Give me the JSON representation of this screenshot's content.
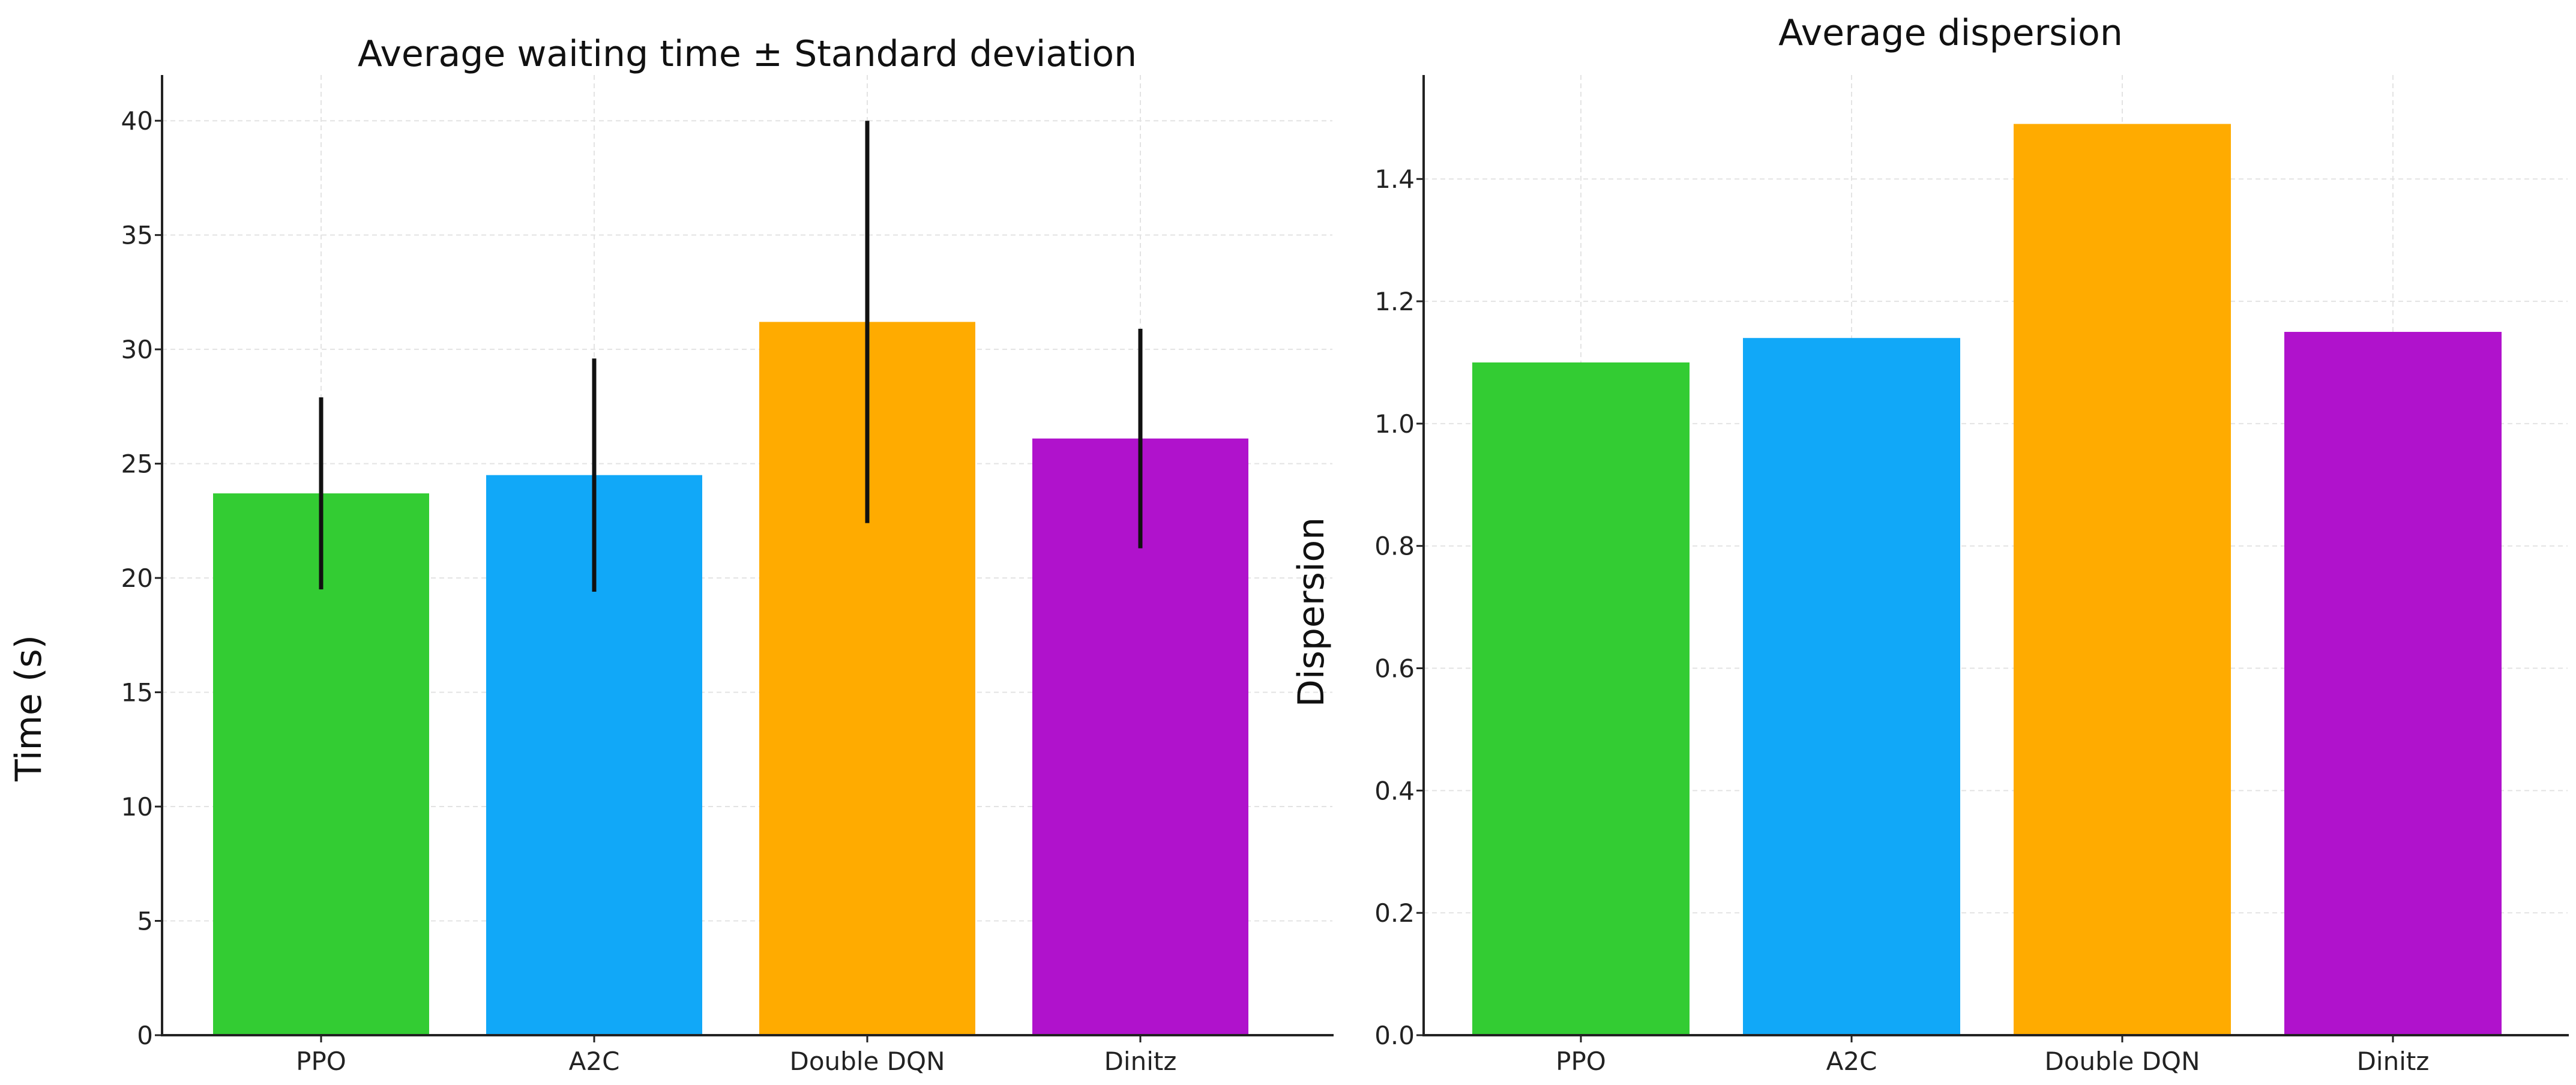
{
  "chart_data": [
    {
      "type": "bar",
      "title": "Average waiting time ± Standard deviation",
      "xlabel": "",
      "ylabel": "Time (s)",
      "categories": [
        "PPO",
        "A2C",
        "Double DQN",
        "Dinitz"
      ],
      "values": [
        23.7,
        24.5,
        31.2,
        26.1
      ],
      "errors": [
        4.2,
        5.1,
        8.8,
        4.8
      ],
      "colors": [
        "#33cc33",
        "#11a8f8",
        "#ffab00",
        "#b012cc"
      ],
      "ylim": [
        0,
        42
      ],
      "yticks": [
        0,
        5,
        10,
        15,
        20,
        25,
        30,
        35,
        40
      ],
      "ytick_labels": [
        "0",
        "5",
        "10",
        "15",
        "20",
        "25",
        "30",
        "35",
        "40"
      ],
      "grid": true
    },
    {
      "type": "bar",
      "title": "Average dispersion",
      "xlabel": "",
      "ylabel": "Dispersion",
      "categories": [
        "PPO",
        "A2C",
        "Double DQN",
        "Dinitz"
      ],
      "values": [
        1.1,
        1.14,
        1.49,
        1.15
      ],
      "colors": [
        "#33cc33",
        "#11a8f8",
        "#ffab00",
        "#b012cc"
      ],
      "ylim": [
        0,
        1.57
      ],
      "yticks": [
        0,
        0.2,
        0.4,
        0.6,
        0.8,
        1.0,
        1.2,
        1.4
      ],
      "ytick_labels": [
        "0.0",
        "0.2",
        "0.4",
        "0.6",
        "0.8",
        "1.0",
        "1.2",
        "1.4"
      ],
      "grid": true
    }
  ]
}
